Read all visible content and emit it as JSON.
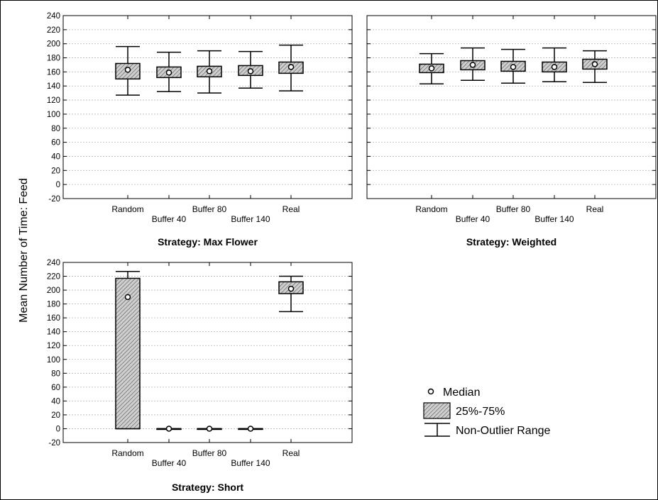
{
  "chart_data": {
    "type": "box",
    "ylabel": "Mean Number of Time: Feed",
    "ylim": [
      -20,
      240
    ],
    "yticks": [
      -20,
      0,
      20,
      40,
      60,
      80,
      100,
      120,
      140,
      160,
      180,
      200,
      220,
      240
    ],
    "categories": [
      "Random",
      "Buffer 40",
      "Buffer 80",
      "Buffer 140",
      "Real"
    ],
    "legend": {
      "median": "Median",
      "box": "25%-75%",
      "whisker": "Non-Outlier Range"
    },
    "colors": {
      "box_fill": "#cfcfcf",
      "hatch": "#555555",
      "axis": "#000000",
      "grid": "#b8b8b8"
    },
    "panels": [
      {
        "title": "Strategy: Max Flower",
        "boxes": [
          {
            "category": "Random",
            "median": 163,
            "q1": 150,
            "q3": 172,
            "min": 127,
            "max": 196
          },
          {
            "category": "Buffer 40",
            "median": 159,
            "q1": 152,
            "q3": 167,
            "min": 132,
            "max": 188
          },
          {
            "category": "Buffer 80",
            "median": 161,
            "q1": 153,
            "q3": 168,
            "min": 130,
            "max": 190
          },
          {
            "category": "Buffer 140",
            "median": 161,
            "q1": 155,
            "q3": 169,
            "min": 137,
            "max": 189
          },
          {
            "category": "Real",
            "median": 167,
            "q1": 158,
            "q3": 174,
            "min": 133,
            "max": 198
          }
        ]
      },
      {
        "title": "Strategy: Weighted",
        "boxes": [
          {
            "category": "Random",
            "median": 165,
            "q1": 159,
            "q3": 171,
            "min": 143,
            "max": 186
          },
          {
            "category": "Buffer 40",
            "median": 170,
            "q1": 163,
            "q3": 176,
            "min": 148,
            "max": 194
          },
          {
            "category": "Buffer 80",
            "median": 167,
            "q1": 161,
            "q3": 175,
            "min": 144,
            "max": 192
          },
          {
            "category": "Buffer 140",
            "median": 167,
            "q1": 160,
            "q3": 174,
            "min": 146,
            "max": 194
          },
          {
            "category": "Real",
            "median": 171,
            "q1": 164,
            "q3": 178,
            "min": 145,
            "max": 190
          }
        ]
      },
      {
        "title": "Strategy: Short",
        "boxes": [
          {
            "category": "Random",
            "median": 190,
            "q1": 0,
            "q3": 217,
            "min": 0,
            "max": 227
          },
          {
            "category": "Buffer 40",
            "median": 0,
            "q1": 0,
            "q3": 0,
            "min": 0,
            "max": 0
          },
          {
            "category": "Buffer 80",
            "median": 0,
            "q1": 0,
            "q3": 0,
            "min": 0,
            "max": 0
          },
          {
            "category": "Buffer 140",
            "median": 0,
            "q1": 0,
            "q3": 0,
            "min": 0,
            "max": 0
          },
          {
            "category": "Real",
            "median": 202,
            "q1": 195,
            "q3": 212,
            "min": 169,
            "max": 220
          }
        ]
      }
    ]
  }
}
